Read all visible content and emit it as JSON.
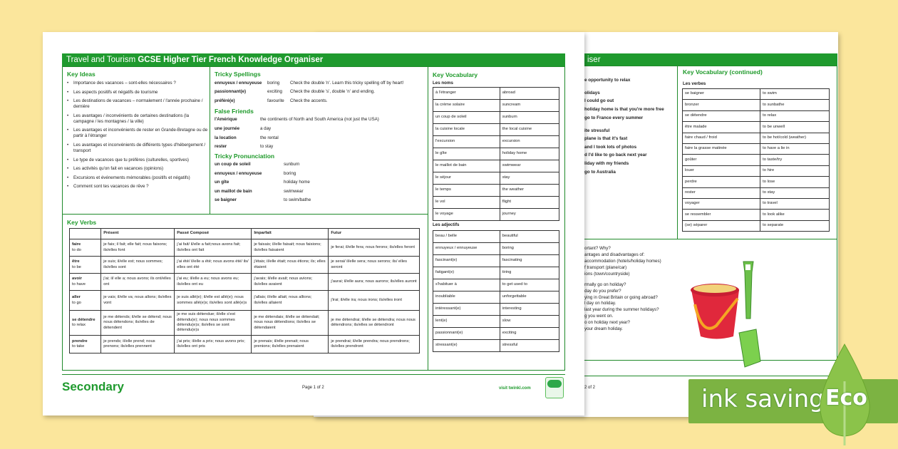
{
  "page1": {
    "title_plain": "Travel and Tourism ",
    "title_bold": "GCSE Higher Tier French Knowledge Organiser",
    "key_ideas": {
      "heading": "Key Ideas",
      "items": [
        "Importance des vacances – sont-elles nécessaires ?",
        "Les aspects positifs et négatifs de tourisme",
        "Les destinations de vacances – normalement / l'année prochaine / dernière",
        "Les avantages / inconvénients de certaines destinations (la campagne / les montagnes / la ville)",
        "Les avantages et inconvénients de rester en Grande-Bretagne ou de partir à l'étranger",
        "Les avantages et inconvénients de différents types d'hébergement / transport",
        "Le type de vacances que tu préfères (culturelles, sportives)",
        "Les activités qu'on fait en vacances (opinions)",
        "Excursions et événements mémorables (positifs et négatifs)",
        "Comment sont tes vacances de rêve ?"
      ]
    },
    "tricky_spellings": {
      "heading": "Tricky Spellings",
      "rows": [
        [
          "ennuyeux / ennuyeuse",
          "boring",
          "Check the double 'n'. Learn this tricky spelling off by heart!"
        ],
        [
          "passionnant(e)",
          "exciting",
          "Check the double 's', double 'n' and ending."
        ],
        [
          "préféré(e)",
          "favourite",
          "Check the accents."
        ]
      ]
    },
    "false_friends": {
      "heading": "False Friends",
      "rows": [
        [
          "l'Amérique",
          "the continents of North and South America (not just the USA)"
        ],
        [
          "une journée",
          "a day"
        ],
        [
          "la location",
          "the rental"
        ],
        [
          "rester",
          "to stay"
        ]
      ]
    },
    "tricky_pronunciation": {
      "heading": "Tricky Pronunciation",
      "rows": [
        [
          "un coup de soleil",
          "sunburn"
        ],
        [
          "ennuyeux / ennuyeuse",
          "boring"
        ],
        [
          "un gîte",
          "holiday home"
        ],
        [
          "un maillot de bain",
          "swimwear"
        ],
        [
          "se baigner",
          "to swim/bathe"
        ]
      ]
    },
    "key_vocabulary": {
      "heading": "Key Vocabulary",
      "noms_label": "Les noms",
      "noms": [
        [
          "à l'étranger",
          "abroad"
        ],
        [
          "la crème solaire",
          "suncream"
        ],
        [
          "un coup de soleil",
          "sunburn"
        ],
        [
          "la cuisine locale",
          "the local cuisine"
        ],
        [
          "l'excursion",
          "excursion"
        ],
        [
          "le gîte",
          "holiday home"
        ],
        [
          "le maillot de bain",
          "swimwear"
        ],
        [
          "le séjour",
          "stay"
        ],
        [
          "le temps",
          "the weather"
        ],
        [
          "le vol",
          "flight"
        ],
        [
          "le voyage",
          "journey"
        ]
      ],
      "adjectifs_label": "Les adjectifs",
      "adjectifs": [
        [
          "beau / belle",
          "beautiful"
        ],
        [
          "ennuyeux / ennuyeuse",
          "boring"
        ],
        [
          "fascinant(e)",
          "fascinating"
        ],
        [
          "fatigant(e)",
          "tiring"
        ],
        [
          "s'habituer à",
          "to get used to"
        ],
        [
          "inoubliable",
          "unforgettable"
        ],
        [
          "intéressant(e)",
          "interesting"
        ],
        [
          "lent(e)",
          "slow"
        ],
        [
          "passionnant(e)",
          "exciting"
        ],
        [
          "stressant(e)",
          "stressful"
        ]
      ]
    },
    "key_verbs": {
      "heading": "Key Verbs",
      "columns": [
        "",
        "Présent",
        "Passé Composé",
        "Imparfait",
        "Futur"
      ],
      "rows": [
        {
          "verb": "faire",
          "meaning": "to do",
          "cells": [
            "je fais; il fait; elle fait; nous faisons; ils/elles font",
            "j'ai fait/ il/elle a fait;nous avons fait; ils/elles ont fait",
            "je faisais; il/elle faisait; nous faisions; ils/elles faisaient",
            "je ferai; il/elle fera; nous ferons; ils/elles feront"
          ]
        },
        {
          "verb": "être",
          "meaning": "to be",
          "cells": [
            "je suis; il/elle est; nous sommes; ils/elles sont",
            "j'ai été/ il/elle a été; nous avons été/ ils/ elles ont été",
            "j'étais; il/elle était; nous étions; ils; elles étaient",
            "je serai/ il/elle sera; nous serons; ils/ elles seront"
          ]
        },
        {
          "verb": "avoir",
          "meaning": "to have",
          "cells": [
            "j'ai; il/ elle a; nous avons; ils ont/elles ont",
            "j'ai eu; il/elle a eu; nous avons eu; ils/elles ont eu",
            "j'avais; il/elle avait; nous avions; ils/elles avaient",
            "j'aurai; il/elle aura; nous aurons; ils/elles auront"
          ]
        },
        {
          "verb": "aller",
          "meaning": "to go",
          "cells": [
            "je vais; il/elle va; nous allons; ils/elles vont",
            "je suis allé(e); il/elle est allé(e); nous sommes allé(e)s; ils/elles sont allé(e)s",
            "j'allais; il/elle allait; nous allions; ils/elles allaient",
            "j'irai; il/elle ira; nous irons; ils/elles iront"
          ]
        },
        {
          "verb": "se détendre",
          "meaning": "to relax",
          "cells": [
            "je me détends; il/elle se détend; nous nous détendons; ils/elles de détendent",
            "je me suis détendue; il/elle s'est détendu(e); nous nous sommes détendu(e)s; ils/elles se sont détendu(e)s",
            "je me détendais; il/elle se détendait; nous nous détendions; ils/elles se détendaient",
            "je me détendrai; il/elle se détendra; nous nous détendrons; ils/elles se détendront"
          ]
        },
        {
          "verb": "prendre",
          "meaning": "to take",
          "cells": [
            "je prends; il/elle prend; nous prenons; ils/elles prennent",
            "j'ai pris; il/elle a pris; nous avons pris; ils/elles ont pris",
            "je prenais; il/elle prenait; nous prenions; ils/elles prenaient",
            "je prendrai; il/elle prendra; nous prendrons; ils/elles prendront"
          ]
        }
      ]
    },
    "footer": {
      "brand": "Secondary",
      "page": "Page 1 of 2",
      "site": "visit twinkl.com",
      "logo": "twinkl"
    }
  },
  "page2": {
    "title_fragment": "iser",
    "left_lines": [
      "e opportunity to relax",
      "",
      "olidays",
      "I could go out",
      "holiday home is that you're more free",
      "go to France every summer",
      "",
      "ite stressful",
      "plane is that it's fast",
      "and I took lots of photos",
      "d I'd like to go back next year",
      "liday with my friends",
      "go to Australia"
    ],
    "vocab_heading": "Key Vocabulary (continued)",
    "verbes_label": "Les verbes",
    "verbes": [
      [
        "se baigner",
        "to swim"
      ],
      [
        "bronzer",
        "to sunbathe"
      ],
      [
        "se détendre",
        "to relax"
      ],
      [
        "être malade",
        "to be unwell"
      ],
      [
        "faire chaud / froid",
        "to be hot/cold (weather)"
      ],
      [
        "faire la grasse matinée",
        "to have a lie in"
      ],
      [
        "goûter",
        "to taste/try"
      ],
      [
        "louer",
        "to hire"
      ],
      [
        "perdre",
        "to lose"
      ],
      [
        "rester",
        "to stay"
      ],
      [
        "voyager",
        "to travel"
      ],
      [
        "se ressembler",
        "to look alike"
      ],
      [
        "(se) séparer",
        "to separate"
      ]
    ],
    "question_lines": [
      "ortant? Why?",
      "antages and disadvantages of:",
      "accommodation (hotels/holiday homes)",
      "f transport (plane/car)",
      "ions (town/countryside)",
      "",
      "rmally go on holiday?",
      "day do you prefer?",
      "ying in Great Britain or going abroad?",
      "l day on holiday.",
      "last year during the summer holidays?",
      "g you went on.",
      "o on holiday next year?",
      "your dream holiday."
    ],
    "footer_page": "2 of 2"
  },
  "badge": {
    "label": "ink saving",
    "eco": "Eco",
    "color": "#7cb342"
  },
  "colors": {
    "accent": "#1f9a2e",
    "background": "#fbe69c"
  }
}
